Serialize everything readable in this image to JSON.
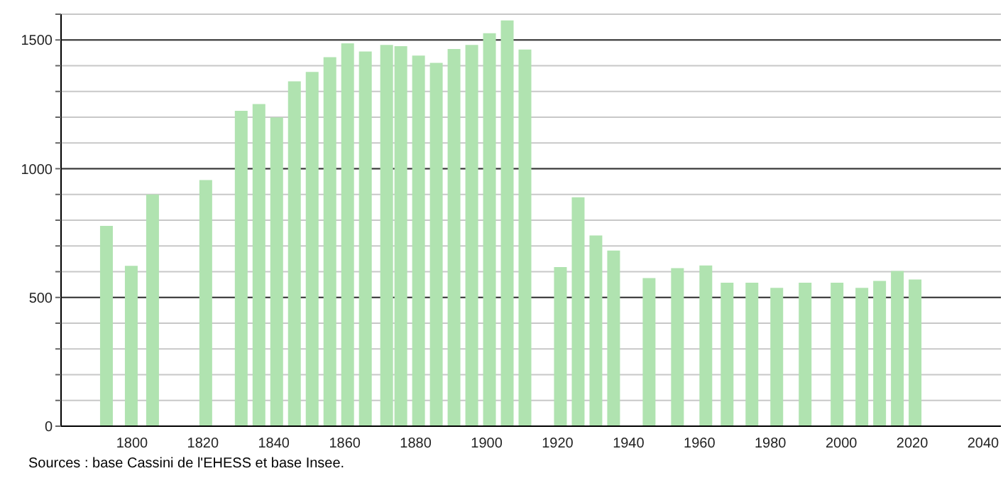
{
  "chart_data": {
    "type": "bar",
    "x": [
      1793,
      1800,
      1806,
      1821,
      1831,
      1836,
      1841,
      1846,
      1851,
      1856,
      1861,
      1866,
      1872,
      1876,
      1881,
      1886,
      1891,
      1896,
      1901,
      1906,
      1911,
      1921,
      1926,
      1931,
      1936,
      1946,
      1954,
      1962,
      1968,
      1975,
      1982,
      1990,
      1999,
      2006,
      2011,
      2016,
      2021
    ],
    "values": [
      778,
      623,
      900,
      956,
      1225,
      1251,
      1199,
      1339,
      1376,
      1433,
      1487,
      1455,
      1481,
      1476,
      1439,
      1411,
      1465,
      1481,
      1526,
      1576,
      1463,
      618,
      889,
      741,
      682,
      575,
      614,
      624,
      557,
      557,
      537,
      557,
      557,
      537,
      564,
      603,
      570
    ],
    "color": "#b0e3b0",
    "xlim": [
      1780,
      2045
    ],
    "xticks": [
      1800,
      1820,
      1840,
      1860,
      1880,
      1900,
      1920,
      1940,
      1960,
      1980,
      2000,
      2020,
      2040
    ],
    "ylim": [
      0,
      1600
    ],
    "yticks": [
      0,
      {
        "value": 100,
        "label": null
      },
      {
        "value": 200,
        "label": null
      },
      {
        "value": 300,
        "label": null
      },
      {
        "value": 400,
        "label": null
      },
      500,
      {
        "value": 600,
        "label": null
      },
      {
        "value": 700,
        "label": null
      },
      {
        "value": 800,
        "label": null
      },
      {
        "value": 900,
        "label": null
      },
      1000,
      {
        "value": 1100,
        "label": null
      },
      {
        "value": 1200,
        "label": null
      },
      {
        "value": 1300,
        "label": null
      },
      {
        "value": 1400,
        "label": null
      },
      1500,
      {
        "value": 1600,
        "label": null
      }
    ],
    "grid": "y",
    "annotations": [
      "Sources : base Cassini de l'EHESS et base Insee."
    ]
  }
}
